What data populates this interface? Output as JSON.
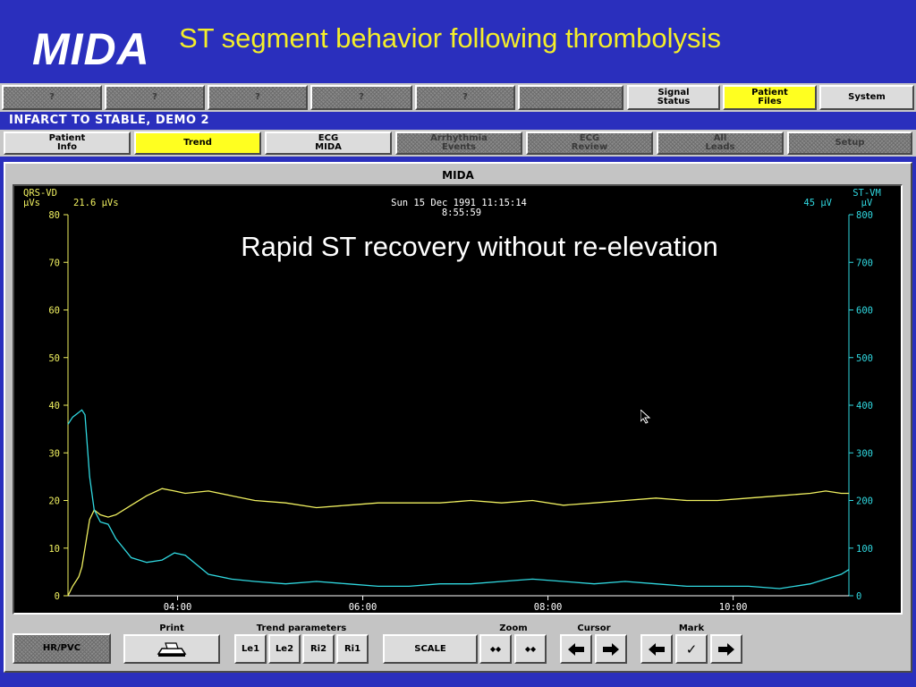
{
  "header": {
    "logo": "MIDA",
    "title": "ST segment behavior following thrombolysis"
  },
  "topbar": {
    "slots": [
      "?",
      "?",
      "?",
      "?",
      "?",
      ""
    ],
    "signal_status": "Signal\nStatus",
    "patient_files": "Patient\nFiles",
    "system": "System"
  },
  "status_line": "INFARCT TO STABLE,  DEMO 2",
  "nav": {
    "items": [
      {
        "label": "Patient\nInfo",
        "state": "normal"
      },
      {
        "label": "Trend",
        "state": "active"
      },
      {
        "label": "ECG\nMIDA",
        "state": "normal"
      },
      {
        "label": "Arrhythmia\nEvents",
        "state": "disabled"
      },
      {
        "label": "ECG\nReview",
        "state": "disabled"
      },
      {
        "label": "All\nLeads",
        "state": "disabled"
      },
      {
        "label": "Setup",
        "state": "disabled"
      }
    ]
  },
  "panel_title": "MIDA",
  "chart_header": {
    "left_title": "QRS-VD",
    "left_unit": "µVs",
    "left_value": "21.6 µVs",
    "datetime": "Sun 15 Dec 1991 11:15:14",
    "time": "8:55:59",
    "right_value": "45 µV",
    "right_title": "ST-VM",
    "right_unit": "µV"
  },
  "annotation": "Rapid ST recovery without re-elevation",
  "colors": {
    "qrs_series": "#f0f060",
    "st_series": "#30d8e0",
    "left_axis": "#f0f060",
    "right_axis": "#30d8e0",
    "background": "#2a2fbd",
    "title": "#f4ee2a"
  },
  "chart_data": {
    "type": "line",
    "title": "",
    "x": [
      "02:49",
      "02:52",
      "02:56",
      "02:58",
      "03:00",
      "03:03",
      "03:06",
      "03:10",
      "03:15",
      "03:20",
      "03:30",
      "03:40",
      "03:50",
      "03:58",
      "04:05",
      "04:20",
      "04:35",
      "04:50",
      "05:10",
      "05:30",
      "05:50",
      "06:10",
      "06:30",
      "06:50",
      "07:10",
      "07:30",
      "07:50",
      "08:10",
      "08:30",
      "08:50",
      "09:10",
      "09:30",
      "09:50",
      "10:10",
      "10:30",
      "10:50",
      "11:00",
      "11:10",
      "11:15"
    ],
    "x_ticks": [
      "04:00",
      "06:00",
      "08:00",
      "10:00"
    ],
    "xlim": [
      "02:49",
      "11:15"
    ],
    "series": [
      {
        "name": "QRS-VD",
        "axis": "left",
        "unit": "µVs",
        "values": [
          0,
          2,
          4,
          6,
          10,
          16,
          18,
          17,
          16.5,
          17,
          19,
          21,
          22.5,
          22,
          21.5,
          22,
          21,
          20,
          19.5,
          18.5,
          19,
          19.5,
          19.5,
          19.5,
          20,
          19.5,
          20,
          19,
          19.5,
          20,
          20.5,
          20,
          20,
          20.5,
          21,
          21.5,
          22,
          21.5,
          21.5
        ]
      },
      {
        "name": "ST-VM",
        "axis": "right",
        "unit": "µV",
        "values": [
          360,
          375,
          385,
          390,
          380,
          250,
          180,
          155,
          150,
          120,
          80,
          70,
          75,
          90,
          85,
          45,
          35,
          30,
          25,
          30,
          25,
          20,
          20,
          25,
          25,
          30,
          35,
          30,
          25,
          30,
          25,
          20,
          20,
          20,
          15,
          25,
          35,
          45,
          55
        ]
      }
    ],
    "left_axis": {
      "label": "QRS-VD",
      "unit": "µVs",
      "ylim": [
        0,
        80
      ],
      "ticks": [
        0,
        10,
        20,
        30,
        40,
        50,
        60,
        70,
        80
      ]
    },
    "right_axis": {
      "label": "ST-VM",
      "unit": "µV",
      "ylim": [
        0,
        800
      ],
      "ticks": [
        0,
        100,
        200,
        300,
        400,
        500,
        600,
        700,
        800
      ]
    },
    "grid": false
  },
  "toolbar": {
    "hrpvc": "HR/PVC",
    "print_label": "Print",
    "trend_params_label": "Trend parameters",
    "trend_params": [
      "Le1",
      "Le2",
      "Ri2",
      "Ri1"
    ],
    "scale": "SCALE",
    "zoom_label": "Zoom",
    "zoom_out": "◆◆",
    "zoom_in": "◆◆",
    "cursor_label": "Cursor",
    "mark_label": "Mark",
    "mark_check": "✓"
  }
}
